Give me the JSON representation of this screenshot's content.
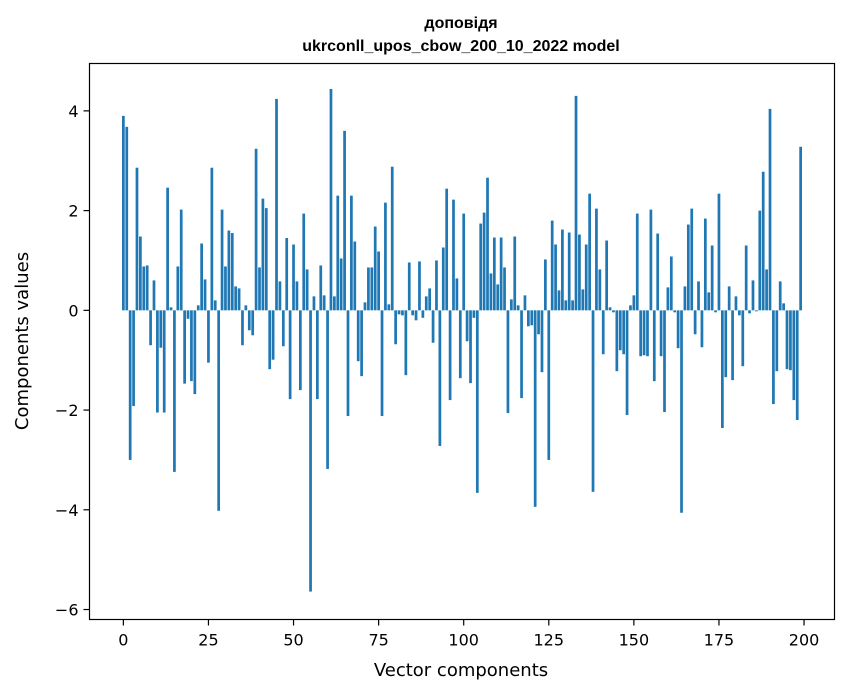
{
  "chart_data": {
    "type": "bar",
    "title": "доповідя",
    "subtitle": "ukrconll_upos_cbow_200_10_2022 model",
    "xlabel": "Vector components",
    "ylabel": "Components values",
    "xlim": [
      -9.95,
      208.95
    ],
    "ylim": [
      -6.2,
      4.95
    ],
    "xticks": [
      0,
      25,
      50,
      75,
      100,
      125,
      150,
      175,
      200
    ],
    "yticks": [
      -6,
      -4,
      -2,
      0,
      2,
      4
    ],
    "ytick_labels": [
      "−6",
      "−4",
      "−2",
      "0",
      "2",
      "4"
    ],
    "grid": false,
    "bar_color": "#1f77b4",
    "values": [
      3.9,
      3.68,
      -3.0,
      -1.92,
      2.86,
      1.48,
      0.88,
      0.9,
      -0.7,
      0.6,
      -2.05,
      -0.75,
      -2.05,
      2.46,
      0.06,
      -3.24,
      0.88,
      2.02,
      -1.47,
      -0.17,
      -1.42,
      -1.68,
      0.1,
      1.34,
      0.62,
      -1.05,
      2.86,
      0.2,
      -4.02,
      2.02,
      0.88,
      1.6,
      1.55,
      0.48,
      0.44,
      -0.7,
      0.1,
      -0.4,
      -0.5,
      3.24,
      0.86,
      2.24,
      2.05,
      -1.18,
      -0.99,
      4.24,
      0.58,
      -0.72,
      1.45,
      -1.78,
      1.32,
      0.58,
      -1.6,
      1.94,
      0.82,
      -5.64,
      0.28,
      -1.78,
      0.9,
      0.3,
      -3.18,
      4.44,
      0.28,
      2.3,
      1.04,
      3.6,
      -2.12,
      2.3,
      1.38,
      -1.02,
      -1.32,
      0.16,
      0.86,
      0.86,
      1.68,
      1.18,
      -2.12,
      2.16,
      0.12,
      2.88,
      -0.68,
      -0.08,
      -0.1,
      -1.3,
      0.96,
      -0.1,
      -0.2,
      0.98,
      -0.15,
      0.28,
      0.44,
      -0.65,
      1.0,
      -2.72,
      1.26,
      2.44,
      -1.8,
      2.22,
      0.64,
      -1.36,
      1.94,
      -0.62,
      -1.46,
      -0.15,
      -3.66,
      1.74,
      1.96,
      2.66,
      0.74,
      1.46,
      0.52,
      1.46,
      0.86,
      -2.06,
      0.22,
      1.48,
      0.1,
      -1.76,
      0.3,
      -0.32,
      -0.3,
      -3.94,
      -0.48,
      -1.24,
      1.02,
      -3.0,
      1.8,
      1.32,
      0.4,
      1.62,
      0.2,
      1.56,
      0.2,
      4.3,
      1.52,
      0.42,
      1.32,
      2.34,
      -3.64,
      2.04,
      0.82,
      -0.88,
      1.4,
      0.06,
      -0.04,
      -1.22,
      -0.8,
      -0.88,
      -2.1,
      0.1,
      0.3,
      1.94,
      -0.92,
      -0.9,
      -0.92,
      2.02,
      -1.42,
      1.54,
      -0.92,
      -2.04,
      0.46,
      1.08,
      -0.04,
      -0.76,
      -4.06,
      0.48,
      1.72,
      2.04,
      -0.48,
      0.58,
      -0.74,
      1.84,
      0.36,
      1.3,
      -0.04,
      2.34,
      -2.36,
      -1.34,
      0.48,
      -1.4,
      0.28,
      -0.1,
      -1.12,
      1.3,
      -0.06,
      0.6,
      -0.02,
      2.0,
      2.78,
      0.82,
      4.04,
      -1.88,
      -1.22,
      0.58,
      0.14,
      -1.18,
      -1.2,
      -1.8,
      -2.2,
      3.28
    ]
  }
}
